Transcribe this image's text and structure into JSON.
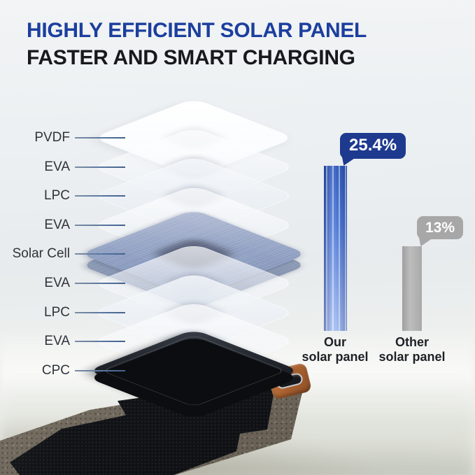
{
  "title": {
    "line1": "HIGHLY EFFICIENT SOLAR PANEL",
    "line2": "FASTER AND SMART CHARGING"
  },
  "diagram": {
    "layers": [
      {
        "label": "PVDF",
        "type": "film-white"
      },
      {
        "label": "EVA",
        "type": "film-clear"
      },
      {
        "label": "LPC",
        "type": "film-frost"
      },
      {
        "label": "EVA",
        "type": "film-clear"
      },
      {
        "label": "Solar Cell",
        "type": "solar-cell"
      },
      {
        "label": "EVA",
        "type": "film-clear"
      },
      {
        "label": "LPC",
        "type": "film-frost"
      },
      {
        "label": "EVA",
        "type": "film-clear"
      },
      {
        "label": "CPC",
        "type": "cpc-black"
      }
    ]
  },
  "chart_data": {
    "type": "bar",
    "categories": [
      "Our solar panel",
      "Other solar panel"
    ],
    "category_lines": [
      [
        "Our",
        "solar panel"
      ],
      [
        "Other",
        "solar panel"
      ]
    ],
    "values": [
      25.4,
      13
    ],
    "value_labels": [
      "25.4%",
      "13%"
    ],
    "unit": "%",
    "bar_colors": [
      "#3465c8",
      "#b1b1b1"
    ],
    "callout_colors": [
      "#1d3a8f",
      "#a7a7a7"
    ],
    "ylim": [
      0,
      28
    ],
    "grid": false,
    "legend": false
  },
  "colors": {
    "title_blue": "#1c3f9e",
    "title_dark": "#17191d",
    "leader_line": "#4f6f9e",
    "label_text": "#2f333a"
  }
}
